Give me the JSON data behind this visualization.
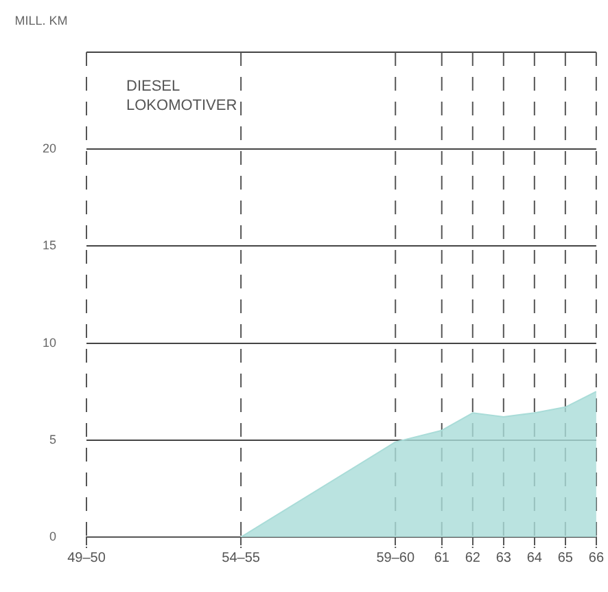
{
  "chart_data": {
    "type": "area",
    "ylabel": "MILL. KM",
    "annotations": [
      "DIESEL LOKOMOTIVER"
    ],
    "x": [
      54.5,
      59.5,
      61,
      62,
      63,
      64,
      65,
      66
    ],
    "series": [
      {
        "color": "#a9dcd8",
        "values": [
          0,
          4.9,
          5.5,
          6.4,
          6.2,
          6.4,
          6.7,
          7.5
        ]
      }
    ],
    "xlim": [
      49.5,
      66
    ],
    "xticks": [
      {
        "value": 49.5,
        "label": "49–50"
      },
      {
        "value": 54.5,
        "label": "54–55"
      },
      {
        "value": 59.5,
        "label": "59–60"
      },
      61,
      62,
      63,
      64,
      65,
      66
    ],
    "ylim": [
      0,
      25
    ],
    "yticks": [
      0,
      5,
      10,
      15,
      20,
      {
        "value": 25,
        "label": null
      }
    ],
    "grid": true,
    "legend": false
  }
}
